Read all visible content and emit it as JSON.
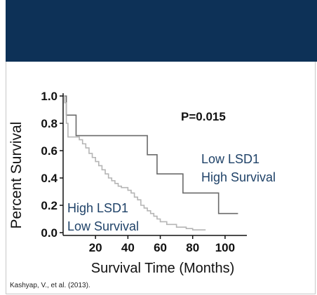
{
  "colors": {
    "header": "#0d3157",
    "high_survival_line": "#6a6a6a",
    "low_survival_line": "#b5b5b5",
    "annotation_text": "#1f4268",
    "axis": "#111111"
  },
  "citation": "Kashyap, V., et al. (2013).",
  "chart_data": {
    "type": "line",
    "xlabel": "Survival Time (Months)",
    "ylabel": "Percent Survival",
    "xlim": [
      0,
      110
    ],
    "ylim": [
      0,
      1.0
    ],
    "x_ticks": [
      "20",
      "40",
      "60",
      "80",
      "100"
    ],
    "x_tick_values": [
      20,
      40,
      60,
      80,
      100
    ],
    "y_ticks": [
      "0.0",
      "0.2",
      "0.4",
      "0.6",
      "0.8",
      "1.0"
    ],
    "y_tick_values": [
      0,
      0.2,
      0.4,
      0.6,
      0.8,
      1.0
    ],
    "step": true,
    "annotations": {
      "p_value": "P=0.015",
      "low_lsd1_line1": "Low LSD1",
      "low_lsd1_line2": "High Survival",
      "high_lsd1_line1": "High LSD1",
      "high_lsd1_line2": "Low Survival"
    },
    "series": [
      {
        "color": "#6a6a6a",
        "x": [
          0,
          2,
          8,
          36,
          52,
          58,
          74,
          96,
          108
        ],
        "y": [
          1.0,
          0.86,
          0.71,
          0.71,
          0.57,
          0.43,
          0.29,
          0.14,
          0.14
        ]
      },
      {
        "color": "#b5b5b5",
        "x": [
          0,
          1,
          2,
          3,
          8,
          10,
          12,
          14,
          16,
          18,
          20,
          22,
          24,
          26,
          28,
          30,
          32,
          34,
          36,
          38,
          40,
          42,
          44,
          46,
          48,
          50,
          52,
          54,
          56,
          58,
          60,
          64,
          70,
          76,
          80,
          88
        ],
        "y": [
          1.0,
          0.95,
          0.8,
          0.7,
          0.7,
          0.68,
          0.65,
          0.62,
          0.58,
          0.55,
          0.52,
          0.49,
          0.46,
          0.43,
          0.4,
          0.38,
          0.36,
          0.34,
          0.33,
          0.33,
          0.31,
          0.29,
          0.26,
          0.24,
          0.2,
          0.18,
          0.16,
          0.14,
          0.12,
          0.1,
          0.08,
          0.06,
          0.04,
          0.03,
          0.02,
          0.02
        ]
      }
    ]
  }
}
